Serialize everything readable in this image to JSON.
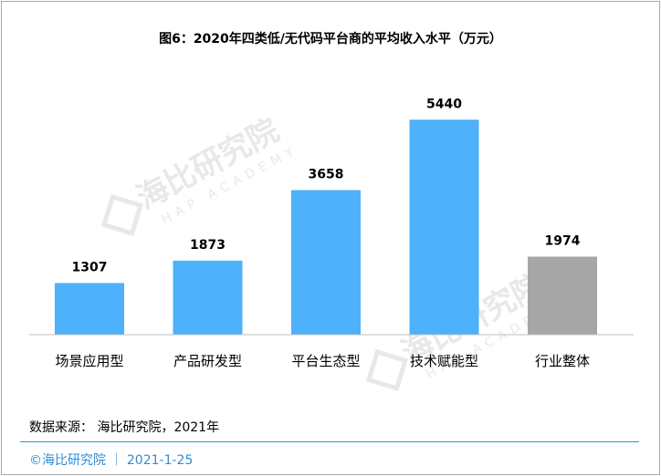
{
  "chart_data": {
    "type": "bar",
    "title": "图6：2020年四类低/无代码平台商的平均收入水平（万元）",
    "categories": [
      "场景应用型",
      "产品研发型",
      "平台生态型",
      "技术赋能型",
      "行业整体"
    ],
    "values": [
      1307,
      1873,
      3658,
      5440,
      1974
    ],
    "colors": [
      "#4db1fb",
      "#4db1fb",
      "#4db1fb",
      "#4db1fb",
      "#a6a6a6"
    ],
    "ylim": [
      0,
      6000
    ],
    "grid": false,
    "legend": "none"
  },
  "watermark": {
    "brand": "海比研究院",
    "english": "HAP ACADEMY"
  },
  "source_text": "数据来源： 海比研究院，2021年",
  "footer_text": "©海比研究院 ｜ 2021-1-25"
}
